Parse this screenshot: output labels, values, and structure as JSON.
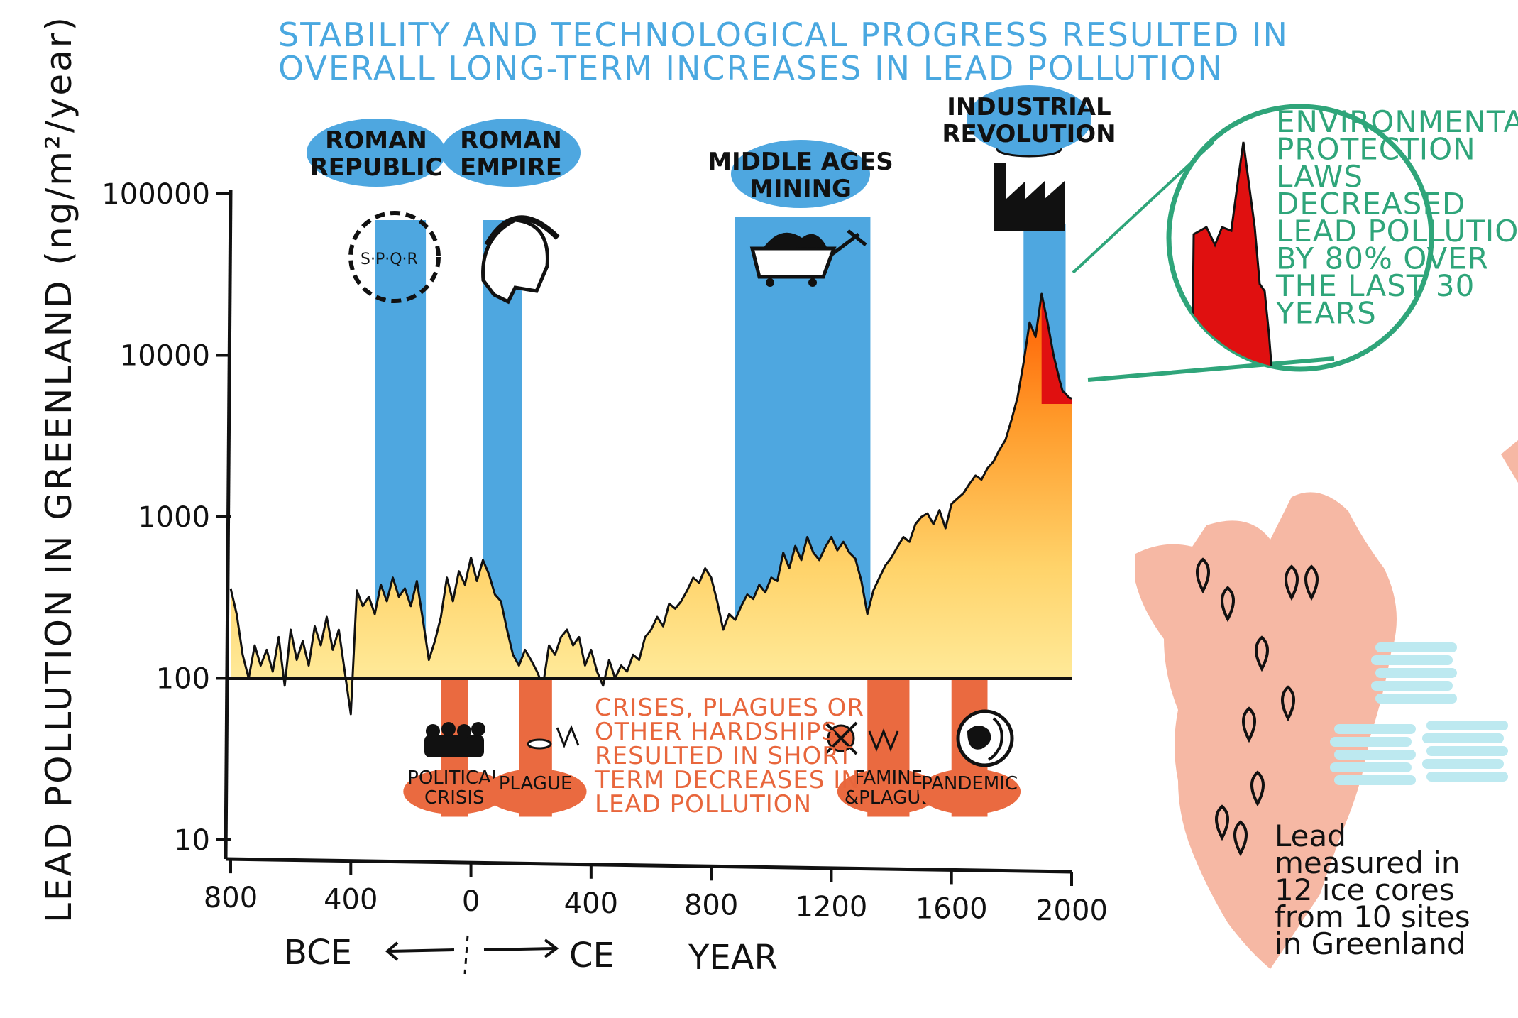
{
  "chart_data": {
    "type": "area",
    "title_lines": [
      "STABILITY AND TECHNOLOGICAL PROGRESS RESULTED IN",
      "OVERALL LONG-TERM INCREASES IN LEAD POLLUTION"
    ],
    "ylabel": "LEAD POLLUTION IN GREENLAND (ng/m²/year)",
    "xlabel": "YEAR",
    "y_scale": "log",
    "ylim": [
      10,
      100000
    ],
    "xlim": [
      -800,
      2000
    ],
    "y_ticks": [
      {
        "value": 10,
        "label": "10"
      },
      {
        "value": 100,
        "label": "100"
      },
      {
        "value": 1000,
        "label": "1000"
      },
      {
        "value": 10000,
        "label": "10000"
      },
      {
        "value": 100000,
        "label": "100000"
      }
    ],
    "x_ticks": [
      {
        "value": -800,
        "label": "800"
      },
      {
        "value": -400,
        "label": "400"
      },
      {
        "value": 0,
        "label": "0"
      },
      {
        "value": 400,
        "label": "400"
      },
      {
        "value": 800,
        "label": "800"
      },
      {
        "value": 1200,
        "label": "1200"
      },
      {
        "value": 1600,
        "label": "1600"
      },
      {
        "value": 2000,
        "label": "2000"
      }
    ],
    "era_labels": {
      "bce": "BCE",
      "ce": "CE"
    },
    "series": [
      {
        "x": [
          -800,
          -780,
          -760,
          -740,
          -720,
          -700,
          -680,
          -660,
          -640,
          -620,
          -600,
          -580,
          -560,
          -540,
          -520,
          -500,
          -480,
          -460,
          -440,
          -420,
          -400,
          -380,
          -360,
          -340,
          -320,
          -300,
          -280,
          -260,
          -240,
          -220,
          -200,
          -180,
          -160,
          -140,
          -120,
          -100,
          -80,
          -60,
          -40,
          -20,
          0,
          20,
          40,
          60,
          80,
          100,
          120,
          140,
          160,
          180,
          200,
          220,
          240,
          260,
          280,
          300,
          320,
          340,
          360,
          380,
          400,
          420,
          440,
          460,
          480,
          500,
          520,
          540,
          560,
          580,
          600,
          620,
          640,
          660,
          680,
          700,
          720,
          740,
          760,
          780,
          800,
          820,
          840,
          860,
          880,
          900,
          920,
          940,
          960,
          980,
          1000,
          1020,
          1040,
          1060,
          1080,
          1100,
          1120,
          1140,
          1160,
          1180,
          1200,
          1220,
          1240,
          1260,
          1280,
          1300,
          1320,
          1340,
          1360,
          1380,
          1400,
          1420,
          1440,
          1460,
          1480,
          1500,
          1520,
          1540,
          1560,
          1580,
          1600,
          1620,
          1640,
          1660,
          1680,
          1700,
          1720,
          1740,
          1760,
          1780,
          1800,
          1820,
          1840,
          1860,
          1880,
          1900,
          1920,
          1940,
          1960,
          1970,
          1980,
          1990,
          2000
        ],
        "y": [
          360,
          250,
          140,
          100,
          160,
          120,
          150,
          110,
          180,
          90,
          200,
          130,
          170,
          120,
          210,
          160,
          240,
          150,
          200,
          110,
          60,
          350,
          280,
          320,
          250,
          380,
          300,
          420,
          320,
          360,
          280,
          400,
          230,
          130,
          170,
          240,
          420,
          300,
          460,
          380,
          560,
          400,
          540,
          440,
          330,
          300,
          200,
          140,
          120,
          150,
          130,
          110,
          90,
          160,
          140,
          180,
          200,
          160,
          180,
          120,
          150,
          110,
          90,
          130,
          100,
          120,
          110,
          140,
          130,
          180,
          200,
          240,
          210,
          290,
          270,
          300,
          350,
          420,
          390,
          480,
          420,
          300,
          200,
          250,
          230,
          280,
          330,
          310,
          380,
          340,
          420,
          400,
          600,
          480,
          660,
          540,
          750,
          600,
          540,
          650,
          750,
          620,
          700,
          600,
          550,
          400,
          250,
          350,
          420,
          500,
          560,
          650,
          750,
          700,
          900,
          1000,
          1050,
          900,
          1100,
          850,
          1200,
          1300,
          1400,
          1600,
          1800,
          1700,
          2000,
          2200,
          2600,
          3000,
          4000,
          5500,
          9000,
          16000,
          13000,
          24000,
          16000,
          10000,
          7000,
          6000,
          5800,
          5500,
          5400
        ]
      }
    ],
    "growth_periods": [
      {
        "label": "ROMAN REPUBLIC",
        "start": -320,
        "end": -150
      },
      {
        "label": "ROMAN EMPIRE",
        "start": 40,
        "end": 170
      },
      {
        "label": "MIDDLE AGES MINING",
        "start": 880,
        "end": 1330
      },
      {
        "label": "INDUSTRIAL REVOLUTION",
        "start": 1840,
        "end": 1980
      }
    ],
    "crisis_periods": [
      {
        "label_lines": [
          "POLITICAL",
          "CRISIS"
        ],
        "start": -100,
        "end": -10
      },
      {
        "label_lines": [
          "PLAGUE"
        ],
        "start": 160,
        "end": 270
      },
      {
        "label_lines": [
          "FAMINE",
          "&PLAGUE"
        ],
        "start": 1320,
        "end": 1460
      },
      {
        "label_lines": [
          "PANDEMIC"
        ],
        "start": 1600,
        "end": 1720
      }
    ],
    "crisis_note_lines": [
      "CRISES, PLAGUES OR",
      "OTHER HARDSHIPS",
      "RESULTED IN SHORT",
      "TERM DECREASES IN",
      "LEAD POLLUTION"
    ],
    "zoom_note_lines": [
      "ENVIRONMENTAL",
      "PROTECTION",
      "LAWS",
      "DECREASED",
      "LEAD POLLUTION",
      "BY 80% OVER",
      "THE LAST 30",
      "YEARS"
    ],
    "map_note_lines": [
      "Lead",
      "measured in",
      "12 ice cores",
      "from 10 sites",
      "in Greenland"
    ],
    "colors": {
      "growth_band": "#4ea7e0",
      "crisis_band": "#ea6a40",
      "area_low": "#fff1a8",
      "area_high": "#ff6a00",
      "recent_peak": "#e01010",
      "title": "#4aa8e0",
      "green_note": "#2fa57a",
      "map": "#f6b8a4",
      "ice_core": "#bde9f0"
    }
  }
}
